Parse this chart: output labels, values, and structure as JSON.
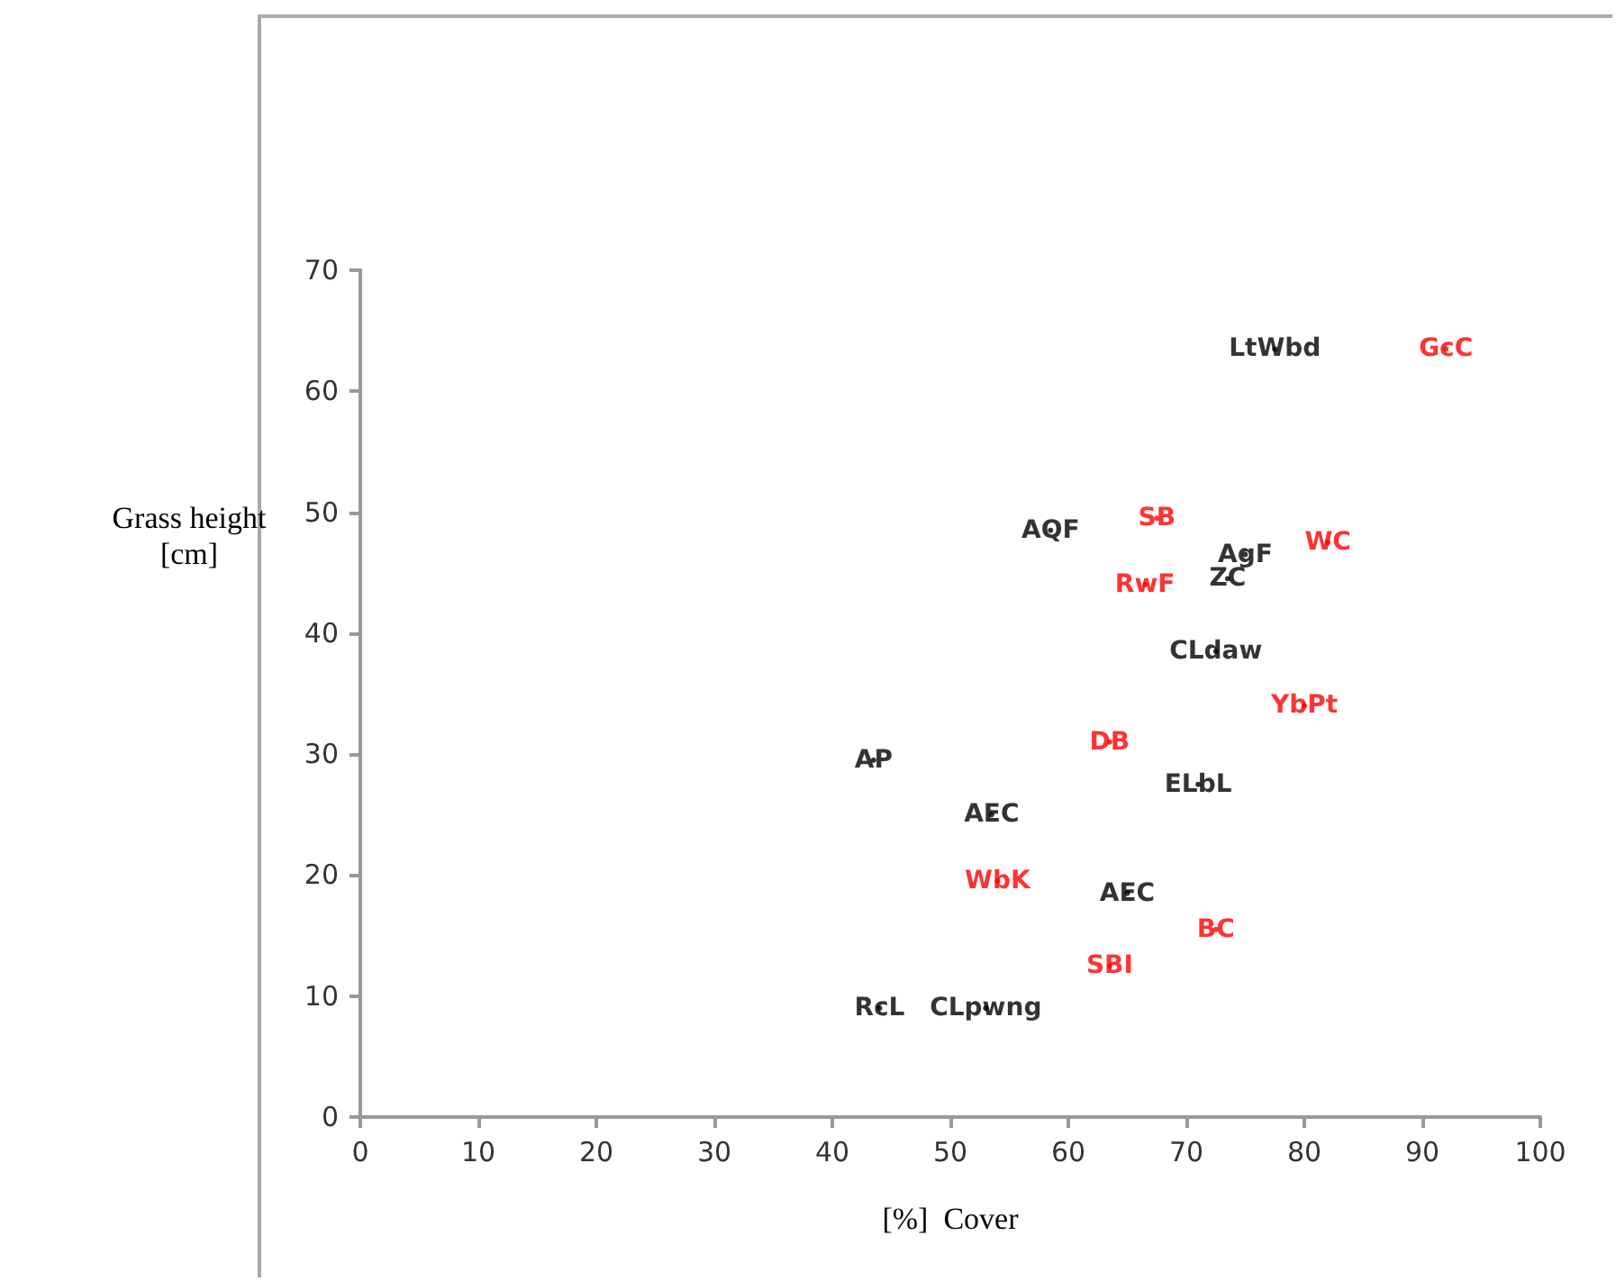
{
  "chart_data": {
    "type": "scatter",
    "xlabel": "[%]  Cover",
    "ylabel": "Grass height [cm]",
    "xlim": [
      0,
      100
    ],
    "xticks": [
      0,
      10,
      20,
      30,
      40,
      50,
      60,
      70,
      80,
      90,
      100
    ],
    "ylim": [
      0,
      70
    ],
    "yticks": [
      0,
      10,
      20,
      30,
      40,
      50,
      60,
      70
    ],
    "grid": false,
    "marker": "none",
    "series": [
      {
        "color": "#000000",
        "x": [
          77.5,
          58.5,
          75,
          73.5,
          72.5,
          43.5,
          71,
          53.5,
          65,
          44,
          53
        ],
        "values": [
          63.5,
          48.5,
          46.5,
          44.5,
          38.5,
          29.5,
          27.5,
          25,
          18.5,
          9,
          9
        ],
        "value_labels": [
          "LtWbd",
          "AQF",
          "AgF",
          "ZC",
          "CLdaw",
          "AP",
          "ELbL",
          "AEC",
          "AEC",
          "RcL",
          "CLpwng"
        ]
      },
      {
        "color": "#ff0000",
        "x": [
          92,
          67.5,
          82,
          66.5,
          80,
          63.5,
          54,
          72.5,
          63.5
        ],
        "values": [
          63.5,
          49.5,
          47.5,
          44,
          34,
          31,
          19.5,
          15.5,
          12.5
        ],
        "value_labels": [
          "GcC",
          "SB",
          "WC",
          "RwF",
          "YbPt",
          "DB",
          "WbK",
          "BC",
          "SBI"
        ]
      }
    ]
  }
}
